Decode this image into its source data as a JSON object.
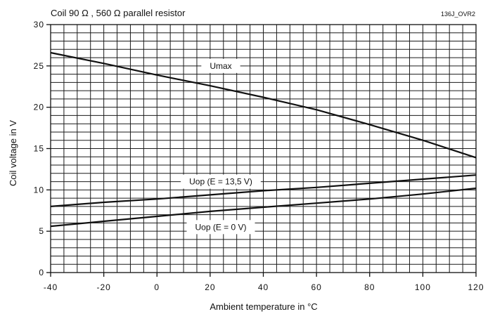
{
  "chart_data": {
    "type": "line",
    "title": "Coil 90 Ω , 560 Ω parallel resistor",
    "reference": "136J_OVR2",
    "xlabel": "Ambient temperature in °C",
    "ylabel": "Coil voltage in V",
    "xlim": [
      -40,
      120
    ],
    "ylim": [
      0,
      30
    ],
    "x_ticks": [
      "-40",
      "-20",
      "0",
      "20",
      "40",
      "60",
      "80",
      "100",
      "120"
    ],
    "y_ticks": [
      "0",
      "5",
      "10",
      "15",
      "20",
      "25",
      "30"
    ],
    "grid": true,
    "grid_x_step": 5,
    "grid_y_step": 1,
    "series": [
      {
        "name": "Umax",
        "x": [
          -40,
          -20,
          0,
          20,
          40,
          60,
          80,
          100,
          120
        ],
        "y": [
          26.6,
          25.3,
          23.9,
          22.6,
          21.2,
          19.7,
          17.9,
          16.0,
          13.9
        ]
      },
      {
        "name": "Uop (E = 13,5 V)",
        "x": [
          -40,
          -20,
          0,
          20,
          40,
          60,
          80,
          100,
          120
        ],
        "y": [
          8.0,
          8.5,
          8.9,
          9.4,
          9.9,
          10.3,
          10.8,
          11.3,
          11.8
        ]
      },
      {
        "name": "Uop (E = 0 V)",
        "x": [
          -40,
          -20,
          0,
          20,
          40,
          60,
          80,
          100,
          120
        ],
        "y": [
          5.6,
          6.2,
          6.8,
          7.4,
          7.9,
          8.4,
          8.9,
          9.5,
          10.2
        ]
      }
    ],
    "annotations": [
      {
        "text": "Umax",
        "x": 24,
        "y": 25.0
      },
      {
        "text": "Uop (E = 13,5 V)",
        "x": 24,
        "y": 11.0
      },
      {
        "text": "Uop (E = 0 V)",
        "x": 24,
        "y": 5.5
      }
    ]
  }
}
